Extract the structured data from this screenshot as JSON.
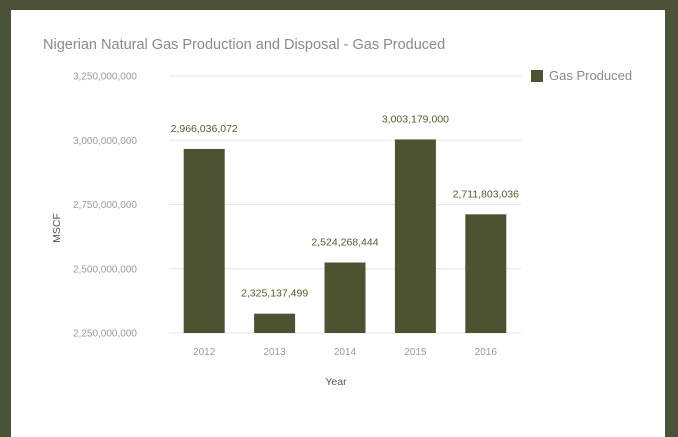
{
  "chart_data": {
    "type": "bar",
    "title": "Nigerian Natural Gas Production and Disposal - Gas Produced",
    "xlabel": "Year",
    "ylabel": "MSCF",
    "categories": [
      "2012",
      "2013",
      "2014",
      "2015",
      "2016"
    ],
    "series": [
      {
        "name": "Gas Produced",
        "values": [
          2966036072,
          2325137499,
          2524268444,
          3003179000,
          2711803036
        ],
        "labels": [
          "2,966,036,072",
          "2,325,137,499",
          "2,524,268,444",
          "3,003,179,000",
          "2,711,803,036"
        ]
      }
    ],
    "ylim": [
      2250000000,
      3250000000
    ],
    "yticks": [
      2250000000,
      2500000000,
      2750000000,
      3000000000,
      3250000000
    ],
    "ytick_labels": [
      "2,250,000,000",
      "2,500,000,000",
      "2,750,000,000",
      "3,000,000,000",
      "3,250,000,000"
    ],
    "grid": true,
    "legend_position": "top-right",
    "bar_color": "#4d5330"
  }
}
